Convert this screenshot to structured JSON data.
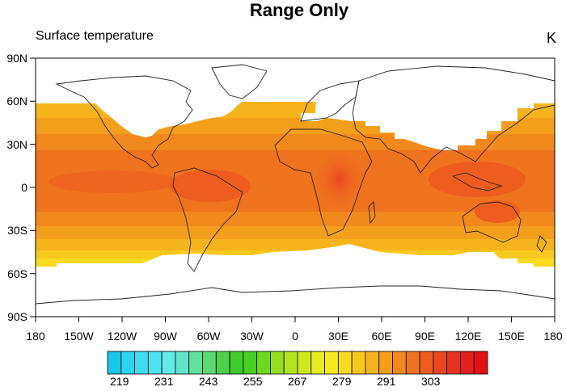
{
  "title": "Range Only",
  "left_title": "Surface temperature",
  "units": "K",
  "lon_labels": [
    "180",
    "150W",
    "120W",
    "90W",
    "60W",
    "30W",
    "0",
    "30E",
    "60E",
    "90E",
    "120E",
    "150E",
    "180"
  ],
  "lat_labels": [
    "90N",
    "60N",
    "30N",
    "0",
    "30S",
    "60S",
    "90S"
  ],
  "colorbar": {
    "labels": [
      "219",
      "231",
      "243",
      "255",
      "267",
      "279",
      "291",
      "303"
    ],
    "colors": [
      "#17c9e6",
      "#2ad5ef",
      "#3ddcf0",
      "#4fe3ef",
      "#62e9e9",
      "#62e4c8",
      "#5fe09d",
      "#5ad972",
      "#4fd04a",
      "#3fca2d",
      "#47d01f",
      "#6fd71c",
      "#93de1e",
      "#b3e41e",
      "#cfe91e",
      "#e6ed1e",
      "#f4ea1f",
      "#f8db1e",
      "#f8c91d",
      "#f6b41c",
      "#f49f1c",
      "#f2891c",
      "#ef721d",
      "#ec5d1e",
      "#e9481f",
      "#e63320",
      "#e3201d",
      "#e21212"
    ]
  }
}
